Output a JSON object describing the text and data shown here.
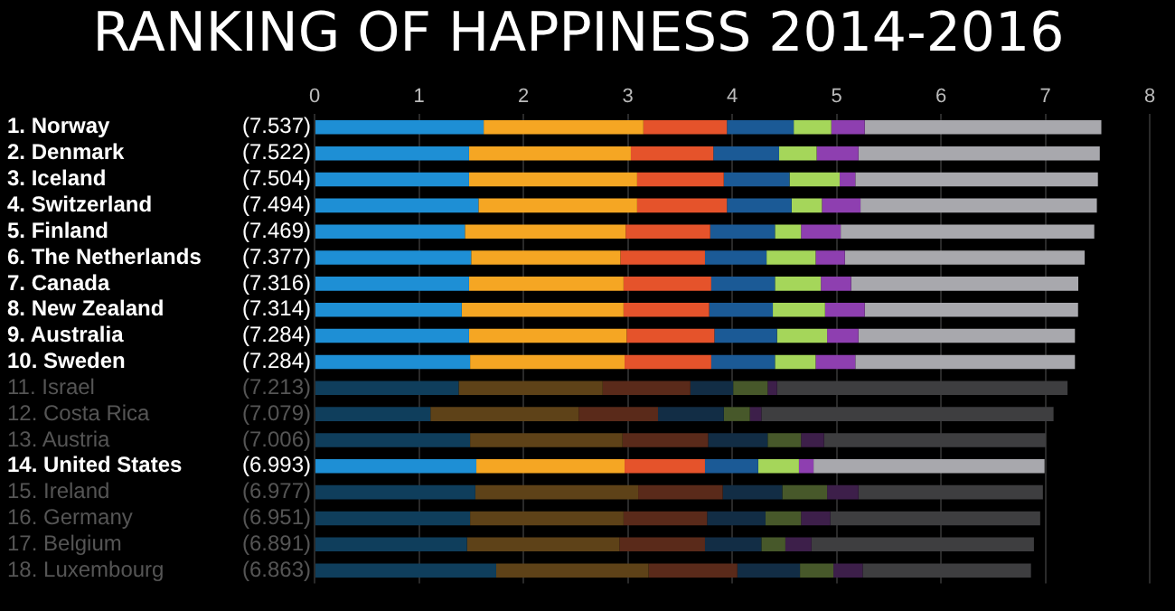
{
  "chart_data": {
    "type": "bar",
    "orientation": "horizontal",
    "stacked": true,
    "title": "RANKING OF HAPPINESS 2014-2016",
    "categories": [
      "1. Norway",
      "2. Denmark",
      "3. Iceland",
      "4. Switzerland",
      "5. Finland",
      "6. The Netherlands",
      "7. Canada",
      "8. New Zealand",
      "9. Australia",
      "10. Sweden",
      "11. Israel",
      "12. Costa Rica",
      "13. Austria",
      "14. United States",
      "15. Ireland",
      "16. Germany",
      "17. Belgium",
      "18. Luxembourg"
    ],
    "totals": [
      "(7.537)",
      "(7.522)",
      "(7.504)",
      "(7.494)",
      "(7.469)",
      "(7.377)",
      "(7.316)",
      "(7.314)",
      "(7.284)",
      "(7.284)",
      "(7.213)",
      "(7.079)",
      "(7.006)",
      "(6.993)",
      "(6.977)",
      "(6.951)",
      "(6.891)",
      "(6.863)"
    ],
    "xlim": [
      0,
      8
    ],
    "xticks": [
      0,
      1,
      2,
      3,
      4,
      5,
      6,
      7,
      8
    ],
    "grid": "x",
    "legend": false,
    "series": [
      {
        "colors": [
          "#1e8fd5",
          "#1e8fd5",
          "#1e8fd5",
          "#1e8fd5",
          "#1e8fd5",
          "#1e8fd5",
          "#1e8fd5",
          "#1e8fd5",
          "#1e8fd5",
          "#1e8fd5",
          "#0f3e5c",
          "#0f3e5c",
          "#0f3e5c",
          "#1e8fd5",
          "#0f3e5c",
          "#0f3e5c",
          "#0f3e5c",
          "#0f3e5c"
        ],
        "values": [
          1.62,
          1.48,
          1.48,
          1.57,
          1.44,
          1.5,
          1.48,
          1.41,
          1.48,
          1.49,
          1.38,
          1.11,
          1.49,
          1.55,
          1.54,
          1.49,
          1.46,
          1.74
        ]
      },
      {
        "colors": [
          "#f5a623",
          "#f5a623",
          "#f5a623",
          "#f5a623",
          "#f5a623",
          "#f5a623",
          "#f5a623",
          "#f5a623",
          "#f5a623",
          "#f5a623",
          "#5e4218",
          "#5e4218",
          "#5e4218",
          "#f5a623",
          "#5e4218",
          "#5e4218",
          "#5e4218",
          "#5e4218"
        ],
        "values": [
          1.53,
          1.55,
          1.61,
          1.52,
          1.54,
          1.43,
          1.48,
          1.55,
          1.51,
          1.48,
          1.38,
          1.42,
          1.46,
          1.42,
          1.56,
          1.47,
          1.46,
          1.46
        ]
      },
      {
        "colors": [
          "#e5532b",
          "#e5532b",
          "#e5532b",
          "#e5532b",
          "#e5532b",
          "#e5532b",
          "#e5532b",
          "#e5532b",
          "#e5532b",
          "#e5532b",
          "#5a2a1a",
          "#5a2a1a",
          "#5a2a1a",
          "#e5532b",
          "#5a2a1a",
          "#5a2a1a",
          "#5a2a1a",
          "#5a2a1a"
        ],
        "values": [
          0.8,
          0.79,
          0.83,
          0.86,
          0.81,
          0.81,
          0.84,
          0.82,
          0.84,
          0.83,
          0.84,
          0.76,
          0.82,
          0.77,
          0.81,
          0.8,
          0.82,
          0.85
        ]
      },
      {
        "colors": [
          "#1b5a96",
          "#1b5a96",
          "#1b5a96",
          "#1b5a96",
          "#1b5a96",
          "#1b5a96",
          "#1b5a96",
          "#1b5a96",
          "#1b5a96",
          "#1b5a96",
          "#122d45",
          "#122d45",
          "#122d45",
          "#1b5a96",
          "#122d45",
          "#122d45",
          "#122d45",
          "#122d45"
        ],
        "values": [
          0.64,
          0.63,
          0.63,
          0.62,
          0.62,
          0.59,
          0.61,
          0.61,
          0.6,
          0.61,
          0.41,
          0.63,
          0.57,
          0.51,
          0.57,
          0.56,
          0.54,
          0.6
        ]
      },
      {
        "colors": [
          "#a5d65a",
          "#a5d65a",
          "#a5d65a",
          "#a5d65a",
          "#a5d65a",
          "#a5d65a",
          "#a5d65a",
          "#a5d65a",
          "#a5d65a",
          "#a5d65a",
          "#47582a",
          "#47582a",
          "#47582a",
          "#a5d65a",
          "#47582a",
          "#47582a",
          "#47582a",
          "#47582a"
        ],
        "values": [
          0.36,
          0.36,
          0.48,
          0.29,
          0.25,
          0.47,
          0.44,
          0.5,
          0.48,
          0.39,
          0.33,
          0.25,
          0.32,
          0.39,
          0.43,
          0.34,
          0.23,
          0.32
        ]
      },
      {
        "colors": [
          "#8e3fb0",
          "#8e3fb0",
          "#8e3fb0",
          "#8e3fb0",
          "#8e3fb0",
          "#8e3fb0",
          "#8e3fb0",
          "#8e3fb0",
          "#8e3fb0",
          "#8e3fb0",
          "#3d1f4a",
          "#3d1f4a",
          "#3d1f4a",
          "#8e3fb0",
          "#3d1f4a",
          "#3d1f4a",
          "#3d1f4a",
          "#3d1f4a"
        ],
        "values": [
          0.32,
          0.4,
          0.15,
          0.37,
          0.38,
          0.28,
          0.29,
          0.38,
          0.3,
          0.38,
          0.09,
          0.11,
          0.22,
          0.14,
          0.3,
          0.28,
          0.25,
          0.28
        ]
      },
      {
        "colors": [
          "#a8a8ad",
          "#a8a8ad",
          "#a8a8ad",
          "#a8a8ad",
          "#a8a8ad",
          "#a8a8ad",
          "#a8a8ad",
          "#a8a8ad",
          "#a8a8ad",
          "#a8a8ad",
          "#3e3e40",
          "#3e3e40",
          "#3e3e40",
          "#a8a8ad",
          "#3e3e40",
          "#3e3e40",
          "#3e3e40",
          "#3e3e40"
        ],
        "values": [
          2.267,
          2.312,
          2.324,
          2.264,
          2.429,
          2.297,
          2.176,
          2.044,
          2.074,
          2.104,
          2.783,
          2.799,
          2.126,
          2.213,
          1.767,
          2.011,
          2.131,
          1.613
        ]
      }
    ]
  }
}
